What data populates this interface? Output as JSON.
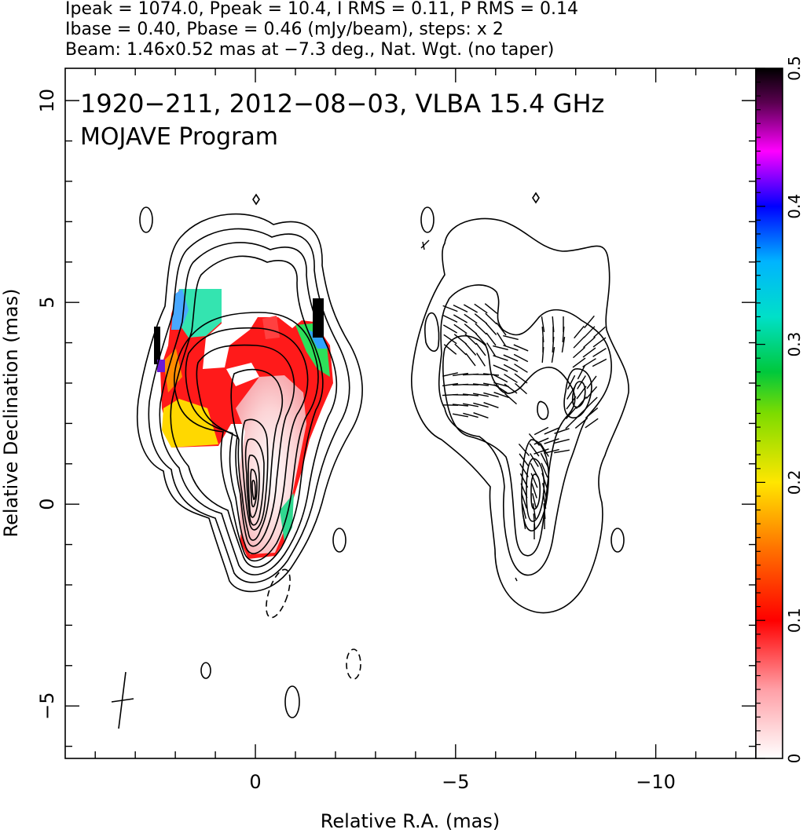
{
  "header": {
    "line1": "Ipeak = 1074.0, Ppeak = 10.4, I RMS = 0.11, P RMS = 0.14",
    "line2": "Ibase = 0.40, Pbase = 0.46 (mJy/beam), steps: x 2",
    "line3": "Beam: 1.46x0.52 mas at −7.3 deg., Nat. Wgt. (no taper)"
  },
  "chart_data": {
    "type": "heatmap",
    "title": "1920−211, 2012−08−03, VLBA 15.4 GHz",
    "subtitle": "MOJAVE Program",
    "xlabel": "Relative R.A. (mas)",
    "ylabel": "Relative Declination (mas)",
    "xlim": [
      4.75,
      -12.5
    ],
    "ylim": [
      -6.3,
      10.8
    ],
    "x_ticks": [
      {
        "value": 0,
        "label": "0"
      },
      {
        "value": -5,
        "label": "−5"
      },
      {
        "value": -10,
        "label": "−10"
      }
    ],
    "y_ticks": [
      {
        "value": -5,
        "label": "−5"
      },
      {
        "value": 0,
        "label": "0"
      },
      {
        "value": 5,
        "label": "5"
      },
      {
        "value": 10,
        "label": "10"
      }
    ],
    "colorbar": {
      "range": [
        0,
        0.5
      ],
      "ticks": [
        {
          "value": 0,
          "label": "0"
        },
        {
          "value": 0.1,
          "label": "0.1"
        },
        {
          "value": 0.2,
          "label": "0.2"
        },
        {
          "value": 0.3,
          "label": "0.3"
        },
        {
          "value": 0.4,
          "label": "0.4"
        },
        {
          "value": 0.5,
          "label": "0.5"
        }
      ]
    },
    "panels": [
      "total intensity contours with fractional polarization color",
      "polarized intensity contours with EVPA ticks (offset −7 mas in R.A.)"
    ],
    "peak_intensity_mJy_beam": 1074.0,
    "peak_polarized_mJy_beam": 10.4,
    "beam": {
      "major_mas": 1.46,
      "minor_mas": 0.52,
      "pa_deg": -7.3
    },
    "grid": false,
    "legend": "none"
  }
}
